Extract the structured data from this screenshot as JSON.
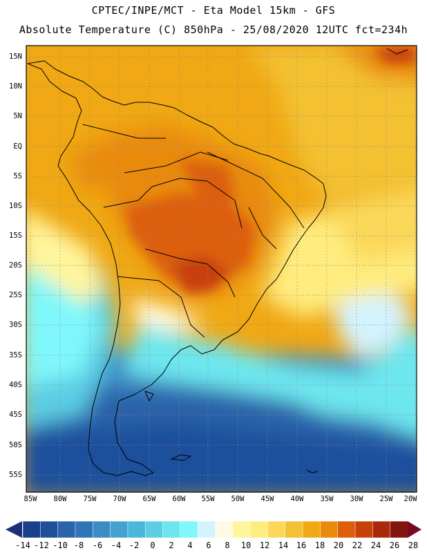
{
  "title_line1": "CPTEC/INPE/MCT -  Eta Model 15km - GFS",
  "title_line2": "Absolute Temperature (C) 850hPa - 25/08/2020 12UTC fct=234h",
  "lat_labels": [
    "15N",
    "10N",
    "5N",
    "EQ",
    "5S",
    "10S",
    "15S",
    "20S",
    "25S",
    "30S",
    "35S",
    "40S",
    "45S",
    "50S",
    "55S"
  ],
  "lon_labels": [
    "85W",
    "80W",
    "75W",
    "70W",
    "65W",
    "60W",
    "55W",
    "50W",
    "45W",
    "40W",
    "35W",
    "30W",
    "25W",
    "20W"
  ],
  "colorbar": {
    "labels": [
      "-14",
      "-12",
      "-10",
      "-8",
      "-6",
      "-4",
      "-2",
      "0",
      "2",
      "4",
      "6",
      "8",
      "10",
      "12",
      "14",
      "16",
      "18",
      "20",
      "22",
      "24",
      "26",
      "28"
    ],
    "colors": [
      "#1a3f8c",
      "#1f4f9c",
      "#2a63aa",
      "#2f75b6",
      "#3b8bc4",
      "#43a2cf",
      "#4bb8d9",
      "#5ccde3",
      "#6de6ee",
      "#7ff7fb",
      "#d3f3ff",
      "#fffbe3",
      "#fff59c",
      "#ffec7e",
      "#fbd85a",
      "#f3c132",
      "#f0a814",
      "#e98a0c",
      "#dc5e0a",
      "#c8400a",
      "#a82a0a",
      "#82160c"
    ],
    "low_arrow_color": "#1b2f7a",
    "high_arrow_color": "#7a0a23"
  }
}
